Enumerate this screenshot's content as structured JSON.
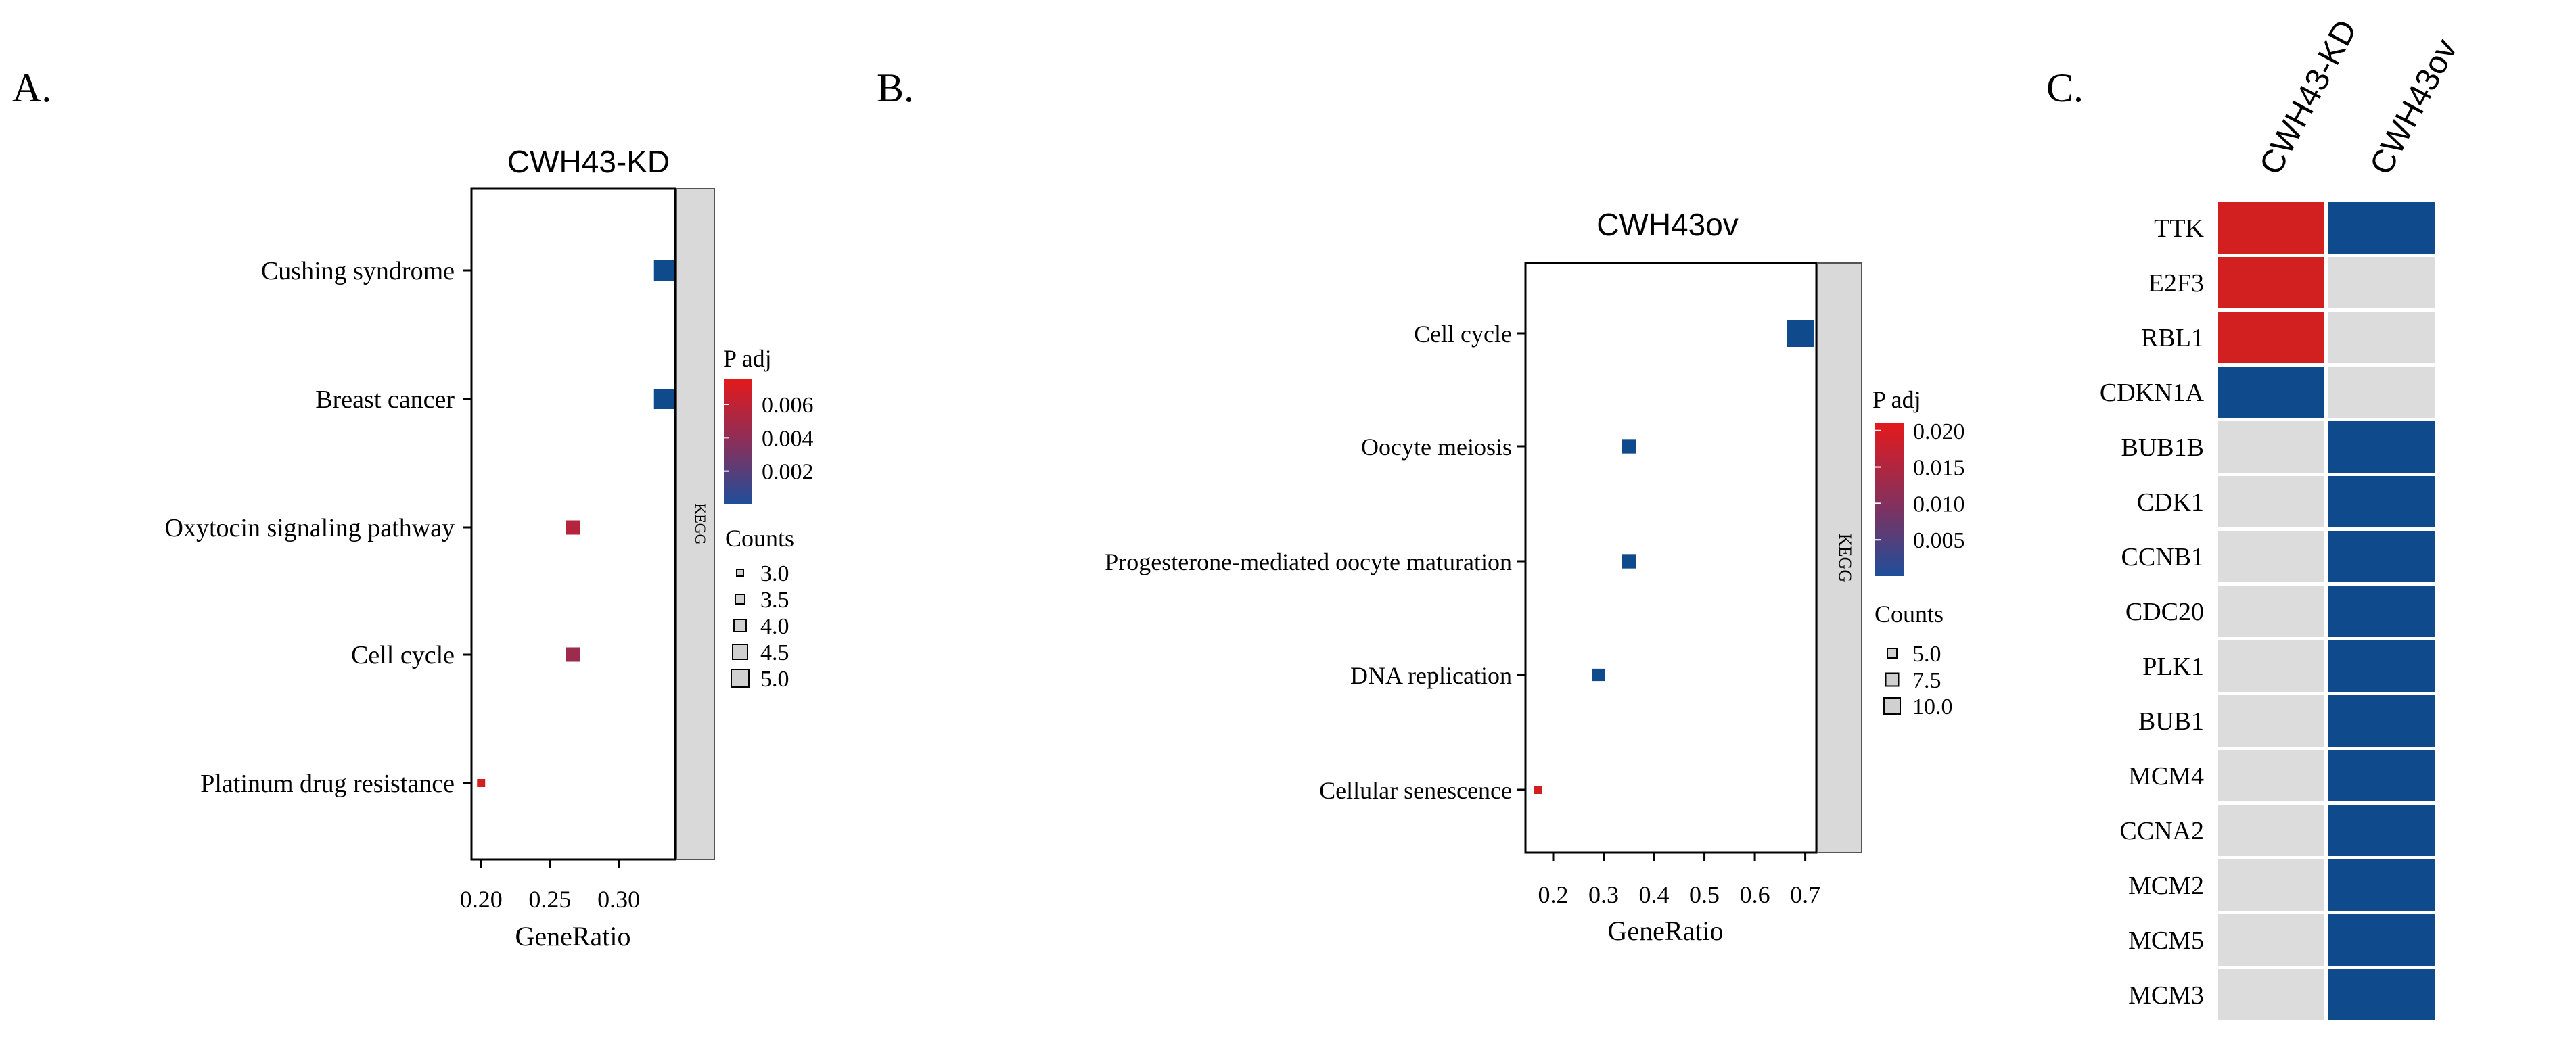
{
  "colors": {
    "red": "#d22020",
    "blue": "#0f4a8c",
    "grey": "#dcdcdc",
    "strip": "#d9d9d9"
  },
  "chart_data": [
    {
      "type": "scatter",
      "panel_label": "A.",
      "title": "CWH43-KD",
      "xlabel": "GeneRatio",
      "ylabel": "",
      "xlim": [
        0.193,
        0.341
      ],
      "xticks": [
        0.2,
        0.25,
        0.3
      ],
      "xtick_labels": [
        "0.20",
        "0.25",
        "0.30"
      ],
      "facet_label": "KEGG",
      "categories": [
        "Cushing syndrome",
        "Breast cancer",
        "Oxytocin signaling pathway",
        "Cell cycle",
        "Platinum drug resistance"
      ],
      "points": [
        {
          "term": "Cushing syndrome",
          "gene_ratio": 0.333,
          "p_adj": 0.0005,
          "count": 5
        },
        {
          "term": "Breast cancer",
          "gene_ratio": 0.333,
          "p_adj": 0.0005,
          "count": 5
        },
        {
          "term": "Oxytocin signaling pathway",
          "gene_ratio": 0.267,
          "p_adj": 0.0055,
          "count": 4
        },
        {
          "term": "Cell cycle",
          "gene_ratio": 0.267,
          "p_adj": 0.0045,
          "count": 4
        },
        {
          "term": "Platinum drug resistance",
          "gene_ratio": 0.2,
          "p_adj": 0.0075,
          "count": 3
        }
      ],
      "color_legend": {
        "title": "P adj",
        "min": 0.0,
        "max": 0.0075,
        "ticks": [
          0.006,
          0.004,
          0.002
        ],
        "tick_labels": [
          "0.006",
          "0.004",
          "0.002"
        ]
      },
      "size_legend": {
        "title": "Counts",
        "range": [
          3,
          5
        ],
        "values": [
          3.0,
          3.5,
          4.0,
          4.5,
          5.0
        ],
        "labels": [
          "3.0",
          "3.5",
          "4.0",
          "4.5",
          "5.0"
        ]
      }
    },
    {
      "type": "scatter",
      "panel_label": "B.",
      "title": "CWH43ov",
      "xlabel": "GeneRatio",
      "ylabel": "",
      "xlim": [
        0.145,
        0.722
      ],
      "xticks": [
        0.2,
        0.3,
        0.4,
        0.5,
        0.6,
        0.7
      ],
      "xtick_labels": [
        "0.2",
        "0.3",
        "0.4",
        "0.5",
        "0.6",
        "0.7"
      ],
      "facet_label": "KEGG",
      "categories": [
        "Cell cycle",
        "Oocyte meiosis",
        "Progesterone-mediated oocyte maturation",
        "DNA replication",
        "Cellular senescence"
      ],
      "points": [
        {
          "term": "Cell cycle",
          "gene_ratio": 0.69,
          "p_adj": 0.0001,
          "count": 12
        },
        {
          "term": "Oocyte meiosis",
          "gene_ratio": 0.35,
          "p_adj": 0.001,
          "count": 6
        },
        {
          "term": "Progesterone-mediated oocyte maturation",
          "gene_ratio": 0.35,
          "p_adj": 0.001,
          "count": 6
        },
        {
          "term": "DNA replication",
          "gene_ratio": 0.29,
          "p_adj": 0.0012,
          "count": 5
        },
        {
          "term": "Cellular senescence",
          "gene_ratio": 0.17,
          "p_adj": 0.021,
          "count": 3
        }
      ],
      "color_legend": {
        "title": "P adj",
        "min": 0.0,
        "max": 0.021,
        "ticks": [
          0.02,
          0.015,
          0.01,
          0.005
        ],
        "tick_labels": [
          "0.020",
          "0.015",
          "0.010",
          "0.005"
        ]
      },
      "size_legend": {
        "title": "Counts",
        "range": [
          3,
          12
        ],
        "values": [
          5.0,
          7.5,
          10.0
        ],
        "labels": [
          "5.0",
          "7.5",
          "10.0"
        ]
      }
    },
    {
      "type": "heatmap",
      "panel_label": "C.",
      "columns": [
        "CWH43-KD",
        "CWH43ov"
      ],
      "rows": [
        "TTK",
        "E2F3",
        "RBL1",
        "CDKN1A",
        "BUB1B",
        "CDK1",
        "CCNB1",
        "CDC20",
        "PLK1",
        "BUB1",
        "MCM4",
        "CCNA2",
        "MCM2",
        "MCM5",
        "MCM3"
      ],
      "values": [
        [
          "up",
          "down"
        ],
        [
          "up",
          "none"
        ],
        [
          "up",
          "none"
        ],
        [
          "down",
          "none"
        ],
        [
          "none",
          "down"
        ],
        [
          "none",
          "down"
        ],
        [
          "none",
          "down"
        ],
        [
          "none",
          "down"
        ],
        [
          "none",
          "down"
        ],
        [
          "none",
          "down"
        ],
        [
          "none",
          "down"
        ],
        [
          "none",
          "down"
        ],
        [
          "none",
          "down"
        ],
        [
          "none",
          "down"
        ],
        [
          "none",
          "down"
        ]
      ]
    }
  ]
}
